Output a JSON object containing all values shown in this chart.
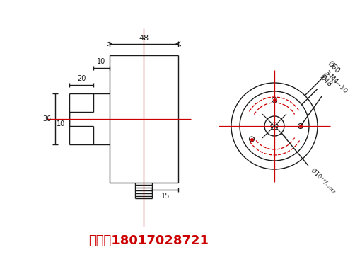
{
  "bg_color": "#ffffff",
  "line_color": "#1a1a1a",
  "red_color": "#cc0000",
  "phone_color": "#cc0000",
  "phone_text": "手机：18017028721",
  "dim_48": "48",
  "dim_10a": "10",
  "dim_20": "20",
  "dim_15": "15",
  "dim_36": "36",
  "dim_10b": "10",
  "label_d60": "Ø60",
  "label_d48": "Ø48",
  "label_3m4": "3-M4−10",
  "label_d10": "Ø10⁺⁰⋅⁰¹⁸"
}
